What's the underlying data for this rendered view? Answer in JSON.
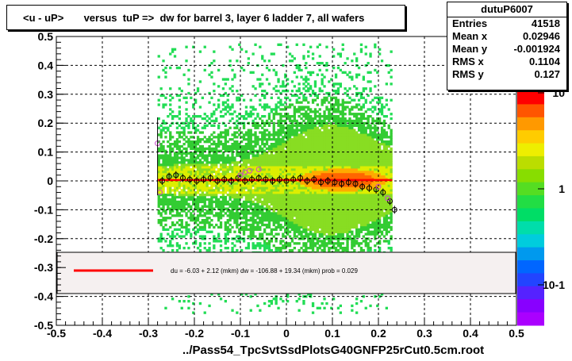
{
  "title": "<u - uP>       versus  tuP =>  dw for barrel 3, layer 6 ladder 7, all wafers",
  "x_axis_title": "../Pass54_TpcSvtSsdPlotsG40GNFP25rCut0.5cm.root",
  "stats": {
    "name": "dutuP6007",
    "rows": [
      {
        "label": "Entries",
        "value": "41518"
      },
      {
        "label": "Mean x",
        "value": "0.02946"
      },
      {
        "label": "Mean y",
        "value": "-0.001924"
      },
      {
        "label": "RMS x",
        "value": "0.1104"
      },
      {
        "label": "RMS y",
        "value": "0.127"
      }
    ]
  },
  "fit_legend": "du =    -6.03 +   2.12 (mkm) dw = -106.88 +  19.34 (mkm) prob = 0.029",
  "colors": {
    "fit_line": "#ff0000",
    "profile_marker": "#000000",
    "outlier_marker": "#cc44cc",
    "grid": "#000000",
    "legend_bg": "#f5f0f0"
  },
  "chart_data": {
    "type": "heatmap",
    "xlim": [
      -0.5,
      0.5
    ],
    "ylim": [
      -0.5,
      0.5
    ],
    "x_ticks": [
      "-0.5",
      "-0.4",
      "-0.3",
      "-0.2",
      "-0.1",
      "0",
      "0.1",
      "0.2",
      "0.3",
      "0.4",
      "0.5"
    ],
    "y_ticks": [
      "0.5",
      "0.4",
      "0.3",
      "0.2",
      "0.1",
      "0",
      "-0.1",
      "-0.2",
      "-0.3",
      "-0.4",
      "-0.5"
    ],
    "z_scale": "log",
    "z_ticks": [
      "10",
      "1",
      "10-1"
    ],
    "grid": true,
    "populated_x_range": [
      -0.28,
      0.23
    ],
    "fit_line": {
      "x": [
        -0.28,
        0.23
      ],
      "y": [
        0.003,
        0.003
      ]
    },
    "profile_points": {
      "x": [
        -0.27,
        -0.255,
        -0.24,
        -0.225,
        -0.21,
        -0.195,
        -0.18,
        -0.165,
        -0.15,
        -0.135,
        -0.12,
        -0.105,
        -0.09,
        -0.075,
        -0.06,
        -0.045,
        -0.03,
        -0.015,
        0.0,
        0.015,
        0.03,
        0.045,
        0.06,
        0.075,
        0.09,
        0.105,
        0.12,
        0.135,
        0.15,
        0.165,
        0.18,
        0.195,
        0.21,
        0.225,
        0.235
      ],
      "y": [
        0.0,
        0.015,
        0.02,
        0.01,
        0.005,
        0.0,
        0.005,
        0.01,
        0.0,
        0.005,
        0.0,
        0.01,
        0.0,
        0.005,
        0.01,
        0.005,
        0.0,
        0.005,
        0.0,
        0.005,
        0.01,
        0.0,
        0.005,
        -0.005,
        0.0,
        -0.005,
        -0.01,
        -0.005,
        -0.01,
        -0.02,
        -0.025,
        -0.03,
        -0.04,
        -0.07,
        -0.1
      ]
    },
    "outlier_points": {
      "x": [
        -0.28,
        -0.275,
        -0.1,
        -0.09,
        -0.08,
        -0.06,
        0.2,
        0.22
      ],
      "y": [
        0.13,
        -0.04,
        0.02,
        0.03,
        0.035,
        0.04,
        -0.02,
        -0.06
      ]
    }
  }
}
